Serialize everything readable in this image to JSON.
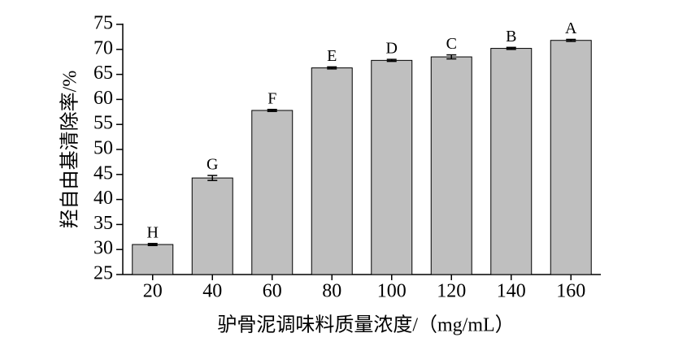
{
  "chart_data": {
    "type": "bar",
    "y_label": "羟自由基清除率/%",
    "x_label": "驴骨泥调味料质量浓度/（mg/mL）",
    "categories": [
      "20",
      "40",
      "60",
      "80",
      "100",
      "120",
      "140",
      "160"
    ],
    "values": [
      31,
      44.3,
      57.8,
      66.3,
      67.8,
      68.5,
      70.2,
      71.8
    ],
    "errors": [
      0.2,
      0.5,
      0.2,
      0.2,
      0.2,
      0.4,
      0.2,
      0.2
    ],
    "annotations": [
      "H",
      "G",
      "F",
      "E",
      "D",
      "C",
      "B",
      "A"
    ],
    "color": "#bfbfbf",
    "ylim": [
      25,
      75
    ],
    "yticks": [
      25,
      30,
      35,
      40,
      45,
      50,
      55,
      60,
      65,
      70,
      75
    ],
    "grid": false
  }
}
